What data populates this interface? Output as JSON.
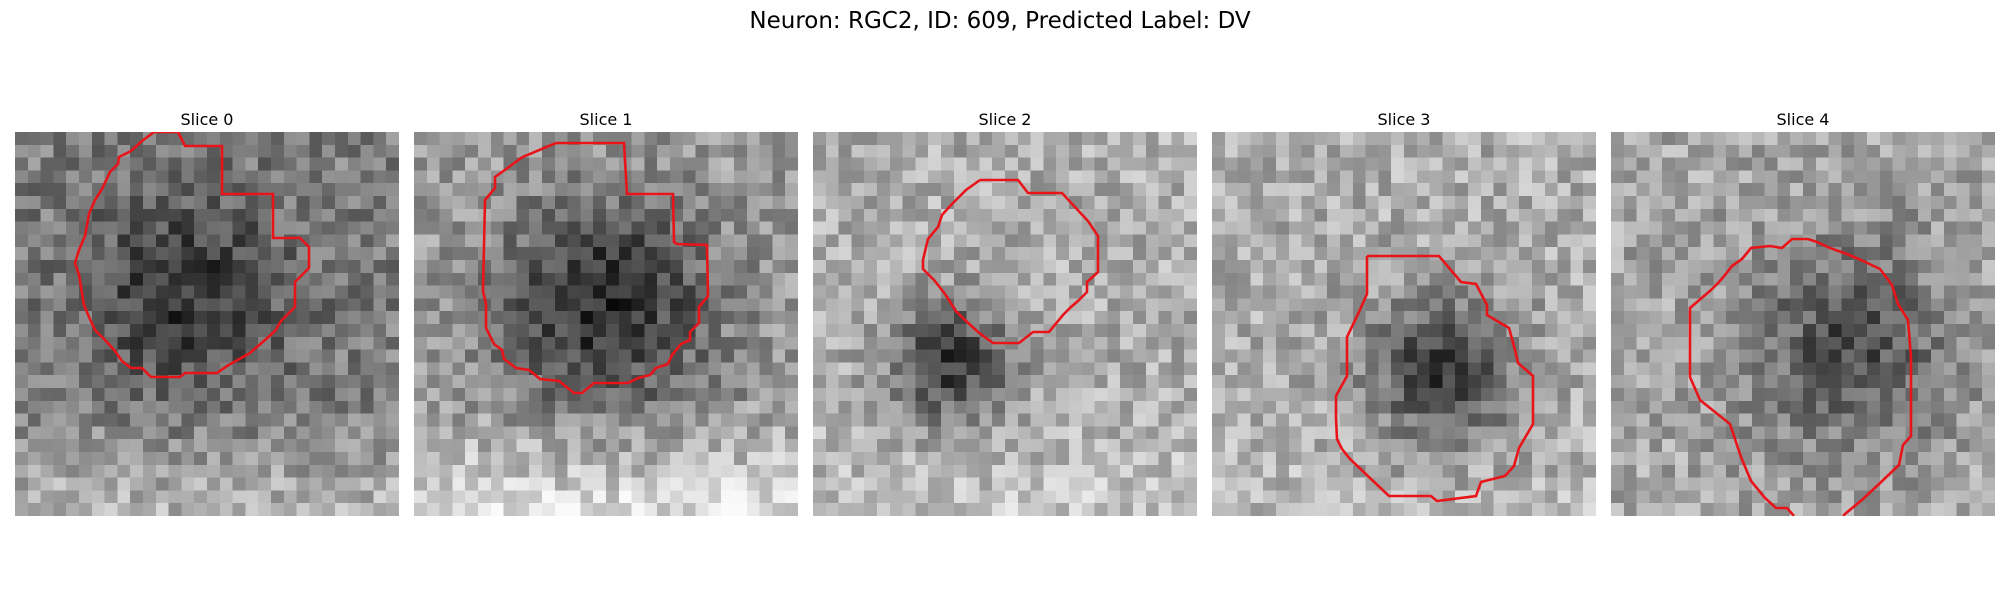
{
  "figure": {
    "title": "Neuron: RGC2, ID: 609, Predicted Label: DV",
    "contour_color": "#e8141a",
    "panels": [
      {
        "title": "Slice 0",
        "base_gray": 0.5,
        "blob_cx": 0.45,
        "blob_cy": 0.42,
        "blob_r": 0.3,
        "blob_dark": 0.3,
        "bright_bottom": 0.25,
        "seed": 11
      },
      {
        "title": "Slice 1",
        "base_gray": 0.62,
        "blob_cx": 0.5,
        "blob_cy": 0.45,
        "blob_r": 0.32,
        "blob_dark": 0.45,
        "bright_bottom": 0.3,
        "seed": 23
      },
      {
        "title": "Slice 2",
        "base_gray": 0.68,
        "blob_cx": 0.36,
        "blob_cy": 0.6,
        "blob_r": 0.18,
        "blob_dark": 0.45,
        "bright_bottom": 0.1,
        "seed": 37
      },
      {
        "title": "Slice 3",
        "base_gray": 0.68,
        "blob_cx": 0.6,
        "blob_cy": 0.62,
        "blob_r": 0.22,
        "blob_dark": 0.45,
        "bright_bottom": 0.05,
        "seed": 51
      },
      {
        "title": "Slice 4",
        "base_gray": 0.65,
        "blob_cx": 0.62,
        "blob_cy": 0.55,
        "blob_r": 0.3,
        "blob_dark": 0.35,
        "bright_bottom": 0.0,
        "seed": 73
      }
    ]
  }
}
